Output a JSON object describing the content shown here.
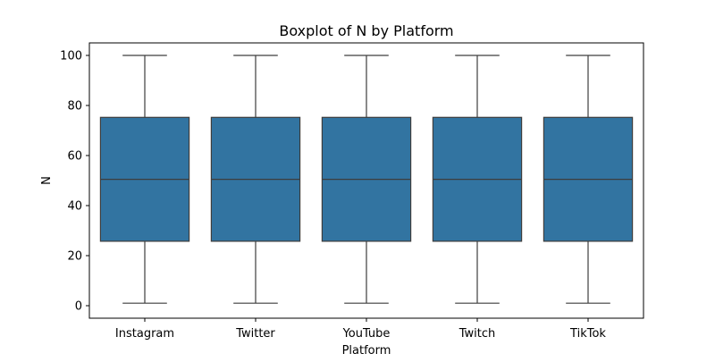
{
  "chart_data": {
    "type": "box",
    "title": "Boxplot of N by Platform",
    "xlabel": "Platform",
    "ylabel": "N",
    "ylim": [
      -5,
      105
    ],
    "yticks": [
      0,
      20,
      40,
      60,
      80,
      100
    ],
    "categories": [
      "Instagram",
      "Twitter",
      "YouTube",
      "Twitch",
      "TikTok"
    ],
    "boxes": [
      {
        "category": "Instagram",
        "min": 1,
        "q1": 25.75,
        "median": 50.5,
        "q3": 75.25,
        "max": 100
      },
      {
        "category": "Twitter",
        "min": 1,
        "q1": 25.75,
        "median": 50.5,
        "q3": 75.25,
        "max": 100
      },
      {
        "category": "YouTube",
        "min": 1,
        "q1": 25.75,
        "median": 50.5,
        "q3": 75.25,
        "max": 100
      },
      {
        "category": "Twitch",
        "min": 1,
        "q1": 25.75,
        "median": 50.5,
        "q3": 75.25,
        "max": 100
      },
      {
        "category": "TikTok",
        "min": 1,
        "q1": 25.75,
        "median": 50.5,
        "q3": 75.25,
        "max": 100
      }
    ],
    "grid": false,
    "colors": {
      "box_fill": "#3274a1",
      "line": "#3d3d3d"
    }
  }
}
